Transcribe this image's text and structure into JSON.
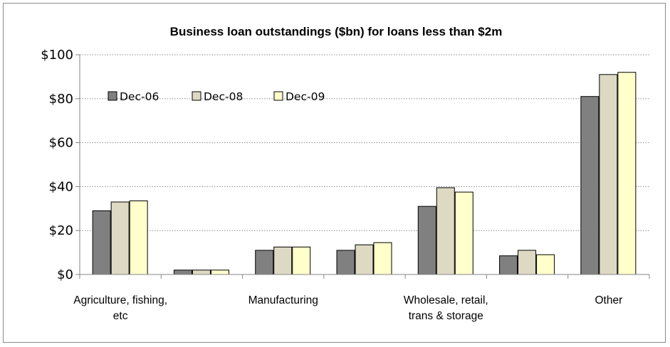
{
  "chart_data": {
    "type": "bar",
    "title": "Business loan outstandings ($bn) for loans less than $2m",
    "xlabel": "",
    "ylabel": "",
    "ylim": [
      0,
      100
    ],
    "yticks": [
      0,
      20,
      40,
      60,
      80,
      100
    ],
    "ytick_labels": [
      "$0",
      "$20",
      "$40",
      "$60",
      "$80",
      "$100"
    ],
    "categories": [
      [
        "Agriculture, fishing,",
        "etc"
      ],
      [
        ""
      ],
      [
        "Manufacturing"
      ],
      [
        ""
      ],
      [
        "Wholesale, retail,",
        "trans & storage"
      ],
      [
        ""
      ],
      [
        "Other"
      ]
    ],
    "series": [
      {
        "name": "Dec-06",
        "color": "#808080",
        "values": [
          29,
          2,
          11,
          11,
          31,
          8.5,
          81
        ]
      },
      {
        "name": "Dec-08",
        "color": "#ddd9c3",
        "values": [
          33,
          2,
          12.5,
          13.5,
          39.5,
          11,
          91
        ]
      },
      {
        "name": "Dec-09",
        "color": "#ffffcc",
        "values": [
          33.5,
          2,
          12.5,
          14.5,
          37.5,
          9,
          92
        ]
      }
    ],
    "grid": true,
    "legend_position": "top-left"
  }
}
